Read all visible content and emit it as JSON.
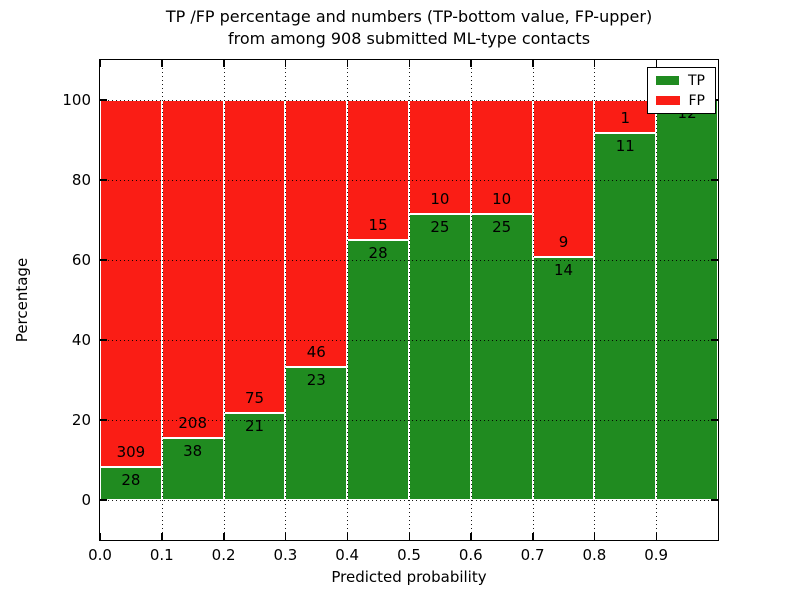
{
  "figure": {
    "title_line1": "TP /FP percentage and numbers (TP-bottom value, FP-upper)",
    "title_line2": "from among 908 submitted ML-type contacts",
    "xlabel": "Predicted probability",
    "ylabel": "Percentage"
  },
  "legend": {
    "items": [
      {
        "label": "TP",
        "color": "#208b20"
      },
      {
        "label": "FP",
        "color": "#fa1d15"
      }
    ],
    "position": "upper right"
  },
  "chart_data": {
    "type": "bar",
    "stacked": true,
    "normalized_to_percent": true,
    "title": "TP /FP percentage and numbers (TP-bottom value, FP-upper) from among 908 submitted ML-type contacts",
    "xlabel": "Predicted probability",
    "ylabel": "Percentage",
    "total_contacts": 908,
    "bin_width": 0.1,
    "bin_starts": [
      0.0,
      0.1,
      0.2,
      0.3,
      0.4,
      0.5,
      0.6,
      0.7,
      0.8,
      0.9
    ],
    "series": [
      {
        "name": "TP",
        "color": "#208b20",
        "counts": [
          28,
          38,
          21,
          23,
          28,
          25,
          25,
          14,
          11,
          12
        ]
      },
      {
        "name": "FP",
        "color": "#fa1d15",
        "counts": [
          309,
          208,
          75,
          46,
          15,
          10,
          10,
          9,
          1,
          0
        ]
      }
    ],
    "x_ticks": [
      0.0,
      0.1,
      0.2,
      0.3,
      0.4,
      0.5,
      0.6,
      0.7,
      0.8,
      0.9
    ],
    "x_tick_labels": [
      "0.0",
      "0.1",
      "0.2",
      "0.3",
      "0.4",
      "0.5",
      "0.6",
      "0.7",
      "0.8",
      "0.9"
    ],
    "y_ticks": [
      0,
      20,
      40,
      60,
      80,
      100
    ],
    "xlim": [
      0,
      1.0
    ],
    "ylim": [
      -10,
      110
    ],
    "grid": true,
    "grid_linestyle": "dotted",
    "bar_edge_color": "#ffffff"
  }
}
